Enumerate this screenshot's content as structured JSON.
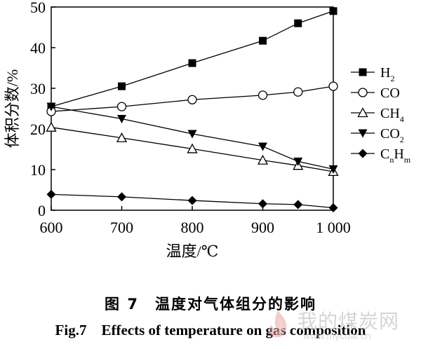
{
  "chart_data": {
    "type": "line",
    "xlabel": "温度/℃",
    "ylabel": "体积分数/%",
    "x": [
      600,
      700,
      800,
      900,
      950,
      1000
    ],
    "xticks": [
      "600",
      "700",
      "800",
      "900",
      "1 000"
    ],
    "xtick_values": [
      600,
      700,
      800,
      900,
      1000
    ],
    "xlim": [
      600,
      1000
    ],
    "ylim": [
      0,
      50
    ],
    "yticks": [
      0,
      10,
      20,
      30,
      40,
      50
    ],
    "grid": false,
    "legend_position": "right",
    "series": [
      {
        "name": "H2",
        "label_main": "H",
        "label_sub": "2",
        "label_tail": "",
        "label_sub2": "",
        "marker": "square-filled",
        "values": [
          25.5,
          30.5,
          36.2,
          41.7,
          46.0,
          49.0
        ]
      },
      {
        "name": "CO",
        "label_main": "CO",
        "label_sub": "",
        "label_tail": "",
        "label_sub2": "",
        "marker": "circle-open",
        "values": [
          24.3,
          25.5,
          27.2,
          28.3,
          29.1,
          30.5
        ]
      },
      {
        "name": "CH4",
        "label_main": "CH",
        "label_sub": "4",
        "label_tail": "",
        "label_sub2": "",
        "marker": "triangle-up-open",
        "values": [
          20.4,
          17.8,
          15.1,
          12.3,
          11.0,
          9.5
        ]
      },
      {
        "name": "CO2",
        "label_main": "CO",
        "label_sub": "2",
        "label_tail": "",
        "label_sub2": "",
        "marker": "triangle-down-filled",
        "values": [
          25.5,
          22.5,
          18.8,
          15.7,
          12.0,
          10.1
        ]
      },
      {
        "name": "CnHm",
        "label_main": "C",
        "label_sub": "n",
        "label_tail": "H",
        "label_sub2": "m",
        "marker": "diamond-filled",
        "values": [
          3.9,
          3.3,
          2.4,
          1.6,
          1.4,
          0.6
        ]
      }
    ]
  },
  "caption": {
    "cn": "图 7　温度对气体组分的影响",
    "en": "Fig.7　Effects of temperature on gas composition"
  },
  "watermark": {
    "text": "我的煤炭网",
    "url": "www.mycoal.cn"
  }
}
